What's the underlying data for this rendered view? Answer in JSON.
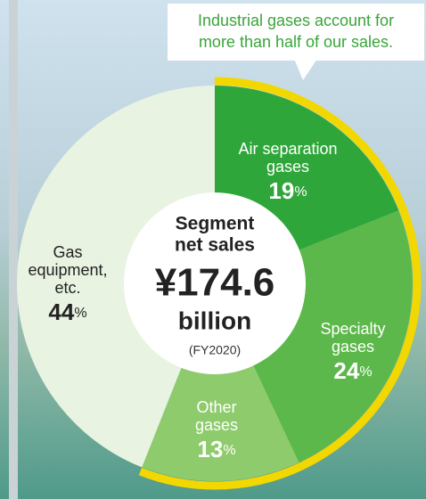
{
  "chart_data": {
    "type": "pie",
    "callout": [
      "Industrial gases account for",
      "more than half of our sales."
    ],
    "center": {
      "title": [
        "Segment",
        "net sales"
      ],
      "amount": "¥174.6",
      "unit": "billion",
      "period": "(FY2020)"
    },
    "categories": [
      [
        "Air separation",
        "gases"
      ],
      [
        "Specialty",
        "gases"
      ],
      [
        "Other",
        "gases"
      ],
      [
        "Gas",
        "equipment,",
        "etc."
      ]
    ],
    "values": [
      19,
      24,
      13,
      44
    ],
    "value_unit": "%",
    "colors": [
      "#2fa63a",
      "#5cb84a",
      "#8ecb6c",
      "#e9f3e1"
    ],
    "label_colors": [
      "#ffffff",
      "#ffffff",
      "#ffffff",
      "#222222"
    ],
    "highlight_color": "#f2d800"
  }
}
